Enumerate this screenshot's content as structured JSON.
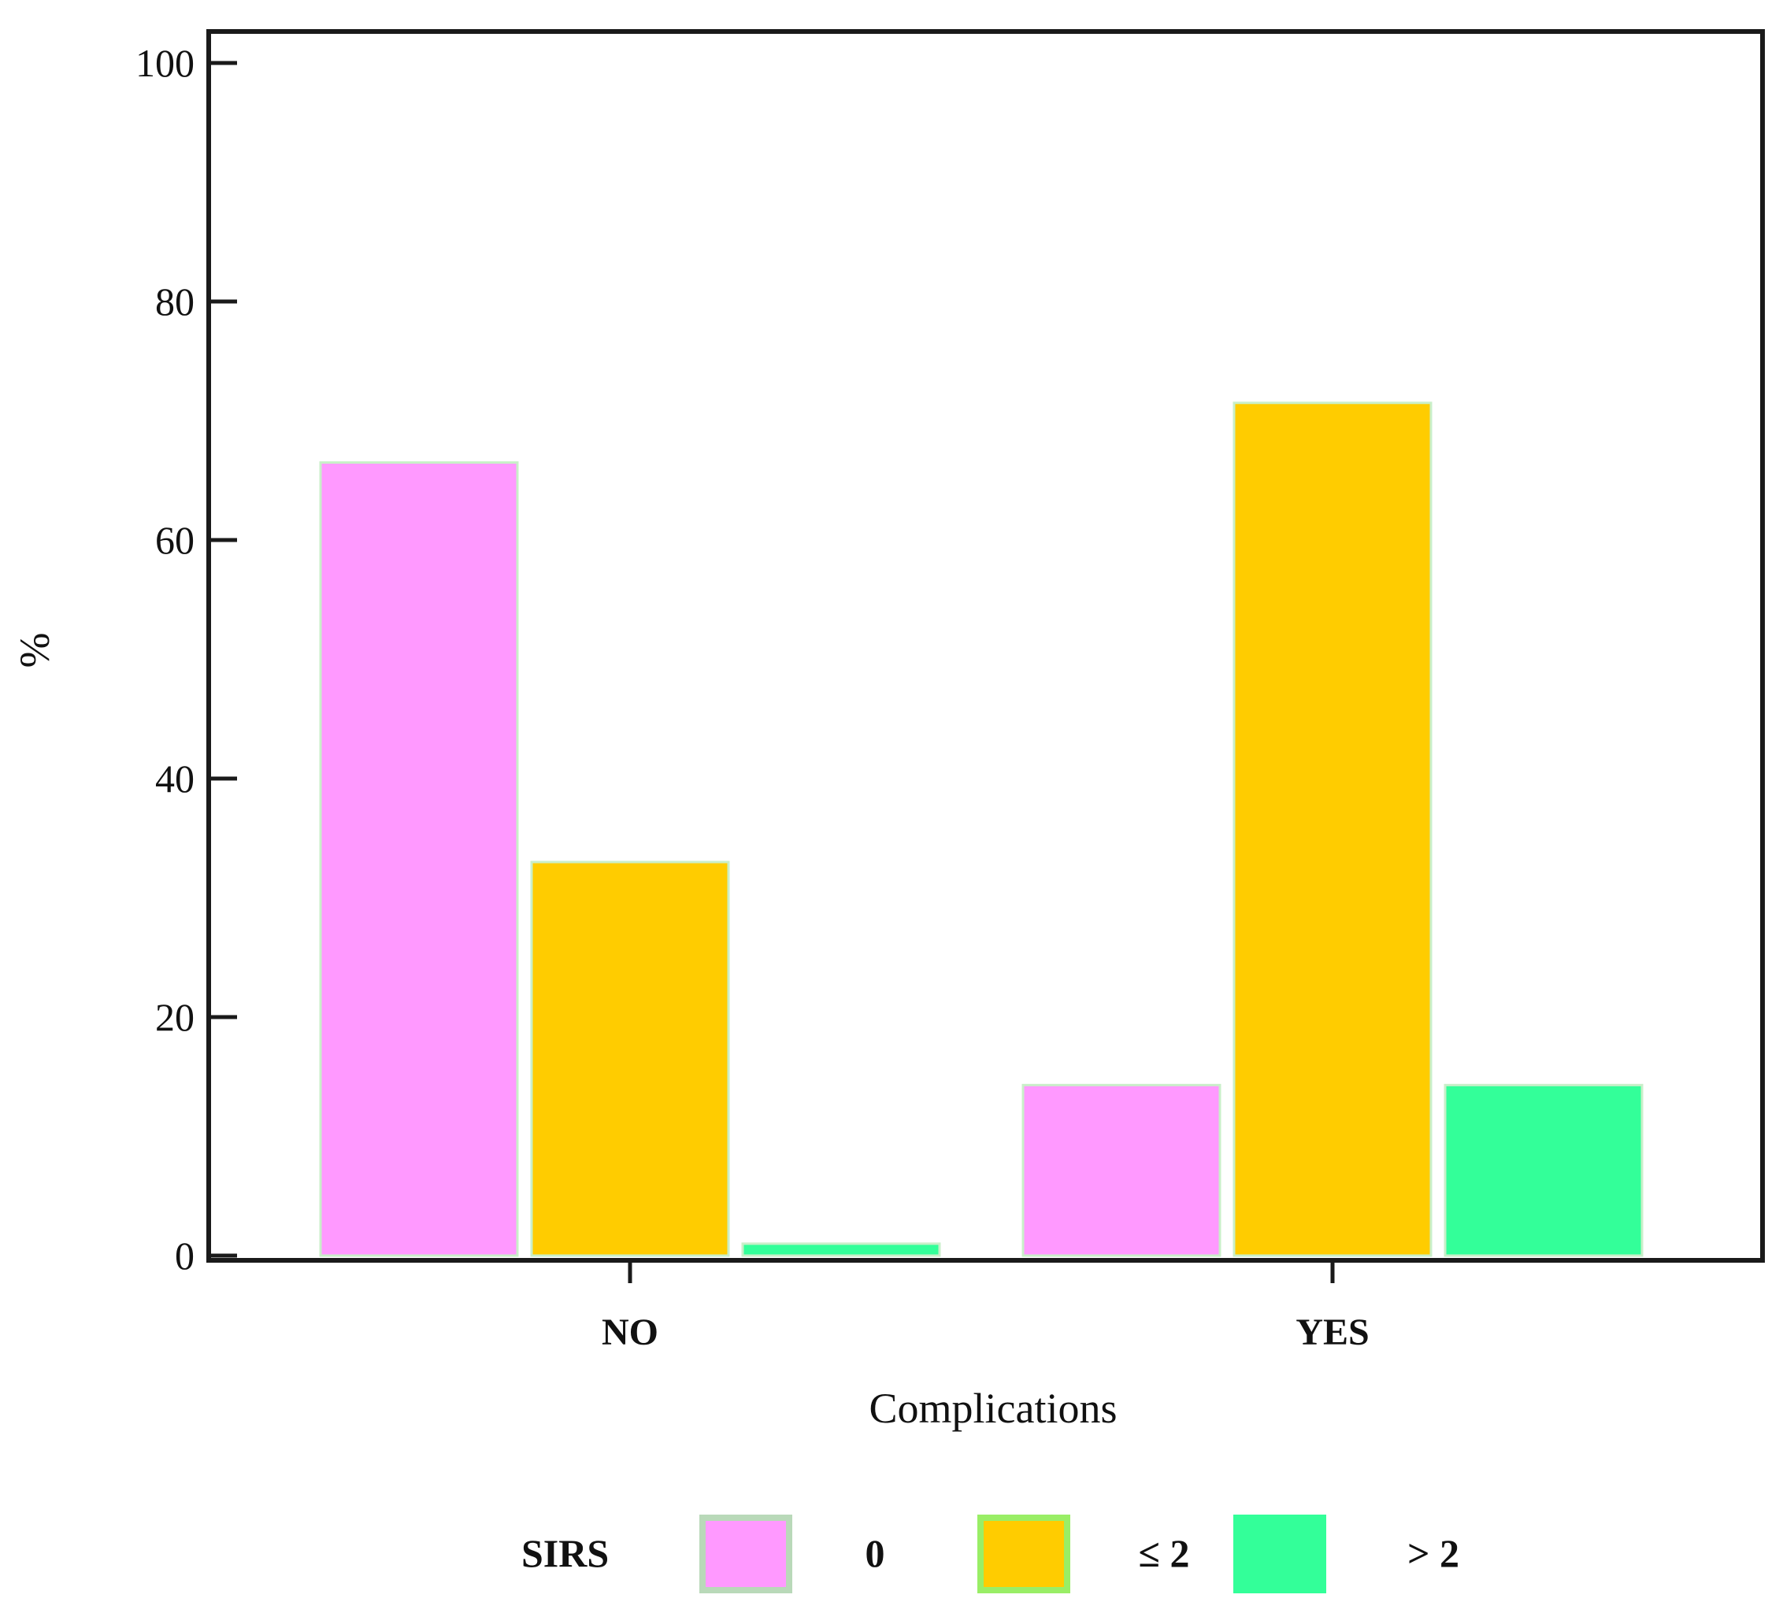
{
  "chart_data": {
    "type": "bar",
    "title": "",
    "xlabel": "Complications",
    "ylabel": "%",
    "ylim": [
      0,
      100
    ],
    "yticks": [
      0,
      20,
      40,
      60,
      80,
      100
    ],
    "ytick_labels": [
      "0",
      "20",
      "40",
      "60",
      "80",
      "100"
    ],
    "categories": [
      "NO",
      "YES"
    ],
    "grid": false,
    "legend": {
      "title": "SIRS",
      "placement": "bottom"
    },
    "series": [
      {
        "name": "0",
        "color": "#ff99ff",
        "values": [
          66.5,
          14.3
        ]
      },
      {
        "name": "≤ 2",
        "color": "#ffcc00",
        "values": [
          33.0,
          71.5
        ]
      },
      {
        "name": "> 2",
        "color": "#33ff99",
        "values": [
          1.0,
          14.3
        ]
      }
    ]
  }
}
